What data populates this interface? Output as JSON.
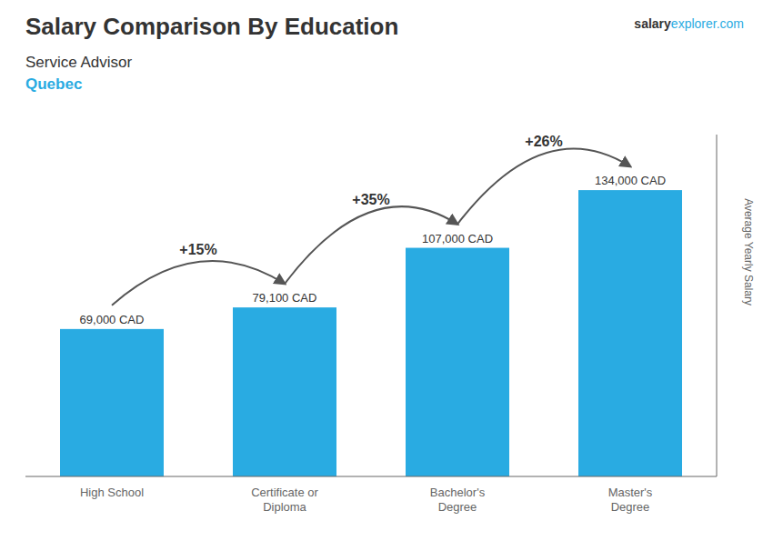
{
  "chart_data": {
    "type": "bar",
    "title": "Salary Comparison By Education",
    "subtitle": "Service Advisor",
    "annotations": [
      "Quebec",
      "salary",
      "explorer.com"
    ],
    "y_label": "Average Yearly Salary",
    "categories": [
      "High School",
      "Certificate or\nDiploma",
      "Bachelor's\nDegree",
      "Master's\nDegree"
    ],
    "values": [
      69000,
      79100,
      107000,
      134000
    ],
    "value_labels": [
      "69,000 CAD",
      "79,100 CAD",
      "107,000 CAD",
      "134,000 CAD"
    ],
    "change_labels": [
      "+15%",
      "+35%",
      "+26%"
    ],
    "color": "#29abe2",
    "ylim": [
      0,
      160000
    ],
    "data_labels": true,
    "tick_labels": "x"
  }
}
